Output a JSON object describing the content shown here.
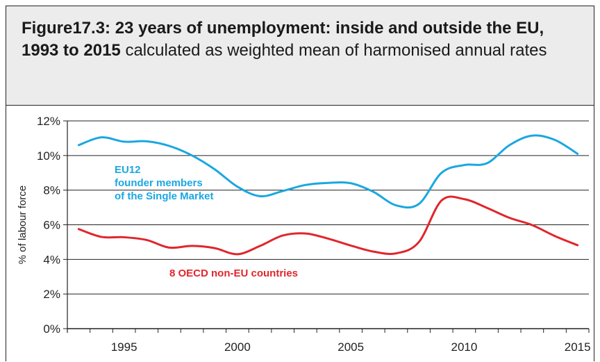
{
  "figure": {
    "title_bold": "Figure17.3: 23 years of unemployment: inside and outside the EU, 1993 to 2015",
    "title_rest": " calculated as weighted mean of harmonised annual rates"
  },
  "chart_data": {
    "type": "line",
    "ylabel": "% of labour force",
    "xlabel": "",
    "ylim": [
      0,
      12
    ],
    "xlim": [
      1993,
      2015
    ],
    "yticks": [
      "0%",
      "2%",
      "4%",
      "6%",
      "8%",
      "10%",
      "12%"
    ],
    "xticks": [
      "1995",
      "2000",
      "2005",
      "2010",
      "2015"
    ],
    "grid": "horizontal",
    "x": [
      1993,
      1994,
      1995,
      1996,
      1997,
      1998,
      1999,
      2000,
      2001,
      2002,
      2003,
      2004,
      2005,
      2006,
      2007,
      2008,
      2009,
      2010,
      2011,
      2012,
      2013,
      2014,
      2015
    ],
    "series": [
      {
        "name": "EU12 founder members of the Single Market",
        "label_lines": [
          "EU12",
          "founder members",
          "of the Single Market"
        ],
        "color": "#1aa7e0",
        "values": [
          10.6,
          11.05,
          10.8,
          10.82,
          10.55,
          10.0,
          9.2,
          8.2,
          7.65,
          7.95,
          8.3,
          8.42,
          8.4,
          7.9,
          7.12,
          7.2,
          9.0,
          9.45,
          9.55,
          10.6,
          11.15,
          10.9,
          10.1
        ]
      },
      {
        "name": "8 OECD non-EU countries",
        "label_lines": [
          "8 OECD non-EU countries"
        ],
        "color": "#e0262b",
        "values": [
          5.75,
          5.3,
          5.28,
          5.12,
          4.68,
          4.78,
          4.65,
          4.3,
          4.78,
          5.38,
          5.5,
          5.2,
          4.8,
          4.45,
          4.35,
          5.0,
          7.4,
          7.48,
          6.98,
          6.4,
          5.98,
          5.35,
          4.82
        ]
      }
    ]
  }
}
